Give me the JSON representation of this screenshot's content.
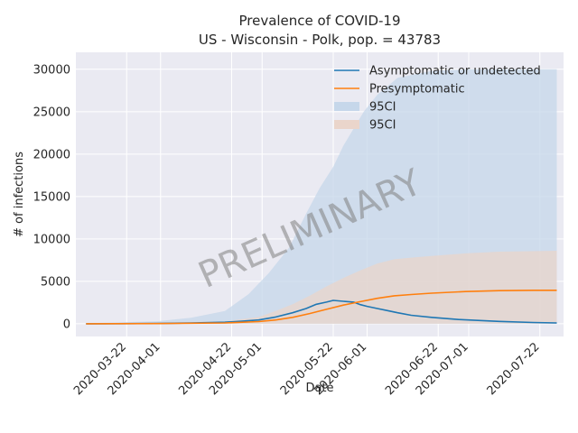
{
  "chart_data": {
    "type": "line",
    "title": "Prevalence of COVID-19",
    "subtitle": "US - Wisconsin - Polk, pop. = 43783",
    "xlabel": "Date",
    "ylabel": "# of infections",
    "watermark": "PRELIMINARY",
    "x_range": [
      "2020-03-07",
      "2020-07-29"
    ],
    "ylim": [
      -1500,
      32000
    ],
    "x_ticks": [
      "2020-03-22",
      "2020-04-01",
      "2020-04-22",
      "2020-05-01",
      "2020-05-22",
      "2020-06-01",
      "2020-06-22",
      "2020-07-01",
      "2020-07-22"
    ],
    "y_ticks": [
      0,
      5000,
      10000,
      15000,
      20000,
      25000,
      30000
    ],
    "grid": true,
    "legend_position": "top-right",
    "colors": {
      "asymptomatic": "#1f77b4",
      "presymptomatic": "#ff7f0e",
      "asymptomatic_ci": "#c6d7ea",
      "presymptomatic_ci": "#ead5cb",
      "background": "#eaeaf2",
      "grid": "#ffffff"
    },
    "series": [
      {
        "name": "Asymptomatic or undetected",
        "color": "#1f77b4",
        "x": [
          "2020-03-10",
          "2020-03-20",
          "2020-03-31",
          "2020-04-10",
          "2020-04-20",
          "2020-04-25",
          "2020-04-30",
          "2020-05-05",
          "2020-05-10",
          "2020-05-14",
          "2020-05-17",
          "2020-05-20",
          "2020-05-22",
          "2020-05-25",
          "2020-05-28",
          "2020-05-30",
          "2020-06-01",
          "2020-06-04",
          "2020-06-07",
          "2020-06-10",
          "2020-06-14",
          "2020-06-20",
          "2020-06-28",
          "2020-07-10",
          "2020-07-20",
          "2020-07-27"
        ],
        "values": [
          0,
          10,
          30,
          80,
          180,
          300,
          450,
          800,
          1300,
          1800,
          2300,
          2550,
          2750,
          2650,
          2550,
          2250,
          2050,
          1800,
          1550,
          1300,
          1000,
          750,
          500,
          280,
          150,
          100
        ]
      },
      {
        "name": "Presymptomatic",
        "color": "#ff7f0e",
        "x": [
          "2020-03-10",
          "2020-03-31",
          "2020-04-20",
          "2020-04-30",
          "2020-05-05",
          "2020-05-10",
          "2020-05-15",
          "2020-05-20",
          "2020-05-25",
          "2020-05-30",
          "2020-06-04",
          "2020-06-09",
          "2020-06-14",
          "2020-06-20",
          "2020-06-30",
          "2020-07-10",
          "2020-07-20",
          "2020-07-27"
        ],
        "values": [
          0,
          20,
          90,
          250,
          450,
          750,
          1200,
          1700,
          2200,
          2600,
          3000,
          3300,
          3450,
          3600,
          3800,
          3900,
          3950,
          3950
        ]
      },
      {
        "name": "95CI",
        "color": "#c6d7ea",
        "band_for": "Asymptomatic or undetected",
        "x": [
          "2020-03-10",
          "2020-03-31",
          "2020-04-10",
          "2020-04-20",
          "2020-04-27",
          "2020-05-03",
          "2020-05-09",
          "2020-05-14",
          "2020-05-18",
          "2020-05-22",
          "2020-05-25",
          "2020-05-28",
          "2020-05-31",
          "2020-06-04",
          "2020-06-10",
          "2020-06-20",
          "2020-07-01",
          "2020-07-27"
        ],
        "upper": [
          50,
          300,
          700,
          1500,
          3500,
          6000,
          9000,
          13000,
          16000,
          18500,
          21000,
          23000,
          25000,
          27000,
          29000,
          29800,
          30000,
          30000
        ],
        "lower": [
          0,
          0,
          0,
          0,
          0,
          0,
          0,
          0,
          0,
          0,
          0,
          0,
          0,
          0,
          0,
          0,
          0,
          0
        ]
      },
      {
        "name": "95CI",
        "color": "#ead5cb",
        "band_for": "Presymptomatic",
        "x": [
          "2020-03-10",
          "2020-03-31",
          "2020-04-20",
          "2020-04-30",
          "2020-05-05",
          "2020-05-10",
          "2020-05-15",
          "2020-05-20",
          "2020-05-25",
          "2020-05-30",
          "2020-06-04",
          "2020-06-09",
          "2020-06-14",
          "2020-06-20",
          "2020-06-30",
          "2020-07-10",
          "2020-07-27"
        ],
        "upper": [
          20,
          100,
          300,
          800,
          1500,
          2300,
          3300,
          4400,
          5400,
          6300,
          7100,
          7600,
          7800,
          8000,
          8300,
          8500,
          8600
        ],
        "lower": [
          0,
          0,
          0,
          0,
          0,
          0,
          0,
          0,
          0,
          0,
          0,
          0,
          0,
          0,
          0,
          0,
          0
        ]
      }
    ]
  }
}
